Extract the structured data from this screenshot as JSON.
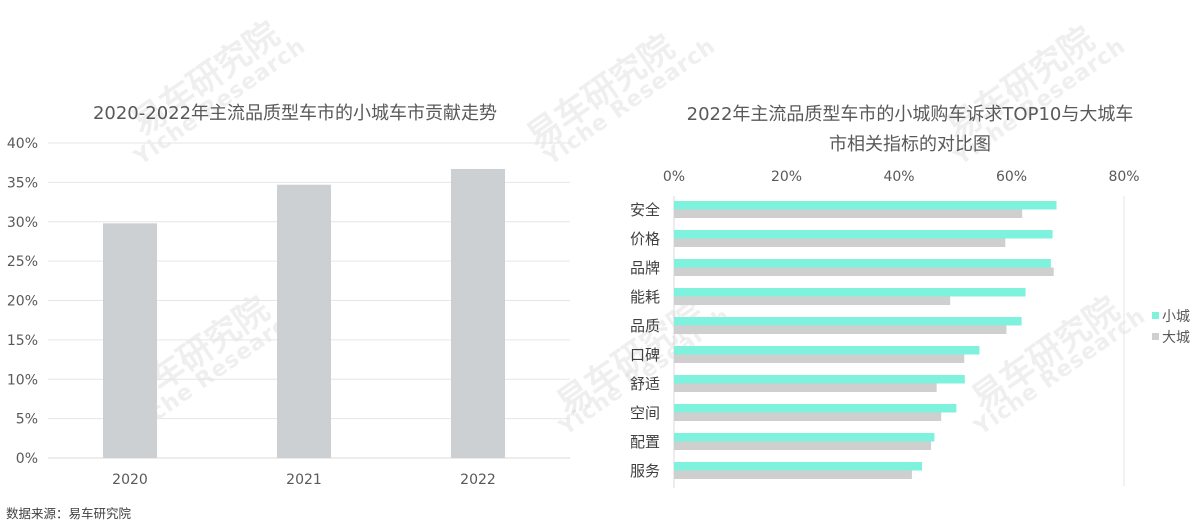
{
  "watermark": {
    "cn": "易车研究院",
    "en": "Yiche Research"
  },
  "source": "数据来源：易车研究院",
  "colors": {
    "small_city": "#7FF2DE",
    "big_city": "#CFCFCF",
    "vbar": "#CDD0D3",
    "grid": "#E6E6E6"
  },
  "chart_data": [
    {
      "type": "bar",
      "title": "2020-2022年主流品质型车市的小城车市贡献走势",
      "categories": [
        "2020",
        "2021",
        "2022"
      ],
      "values": [
        29.8,
        34.7,
        36.7
      ],
      "ylim": [
        0,
        40
      ],
      "yticks": [
        "0%",
        "5%",
        "10%",
        "15%",
        "20%",
        "25%",
        "30%",
        "35%",
        "40%"
      ],
      "grid": true
    },
    {
      "type": "bar",
      "orientation": "horizontal",
      "title": "2022年主流品质型车市的小城购车诉求TOP10与大城车市相关指标的对比图",
      "title_lines": [
        "2022年主流品质型车市的小城购车诉求TOP10与大城车",
        "市相关指标的对比图"
      ],
      "categories": [
        "安全",
        "价格",
        "品牌",
        "能耗",
        "品质",
        "口碑",
        "舒适",
        "空间",
        "配置",
        "服务"
      ],
      "series": [
        {
          "name": "小城",
          "values": [
            68,
            67.3,
            67,
            62.5,
            61.8,
            54.3,
            51.7,
            50.2,
            46.3,
            44.1
          ]
        },
        {
          "name": "大城",
          "values": [
            61.9,
            58.9,
            67.5,
            49.1,
            59.1,
            51.6,
            46.7,
            47.5,
            45.7,
            42.3
          ]
        }
      ],
      "xlim": [
        0,
        80
      ],
      "xticks": [
        "0%",
        "20%",
        "40%",
        "60%",
        "80%"
      ],
      "legend": "right"
    }
  ]
}
